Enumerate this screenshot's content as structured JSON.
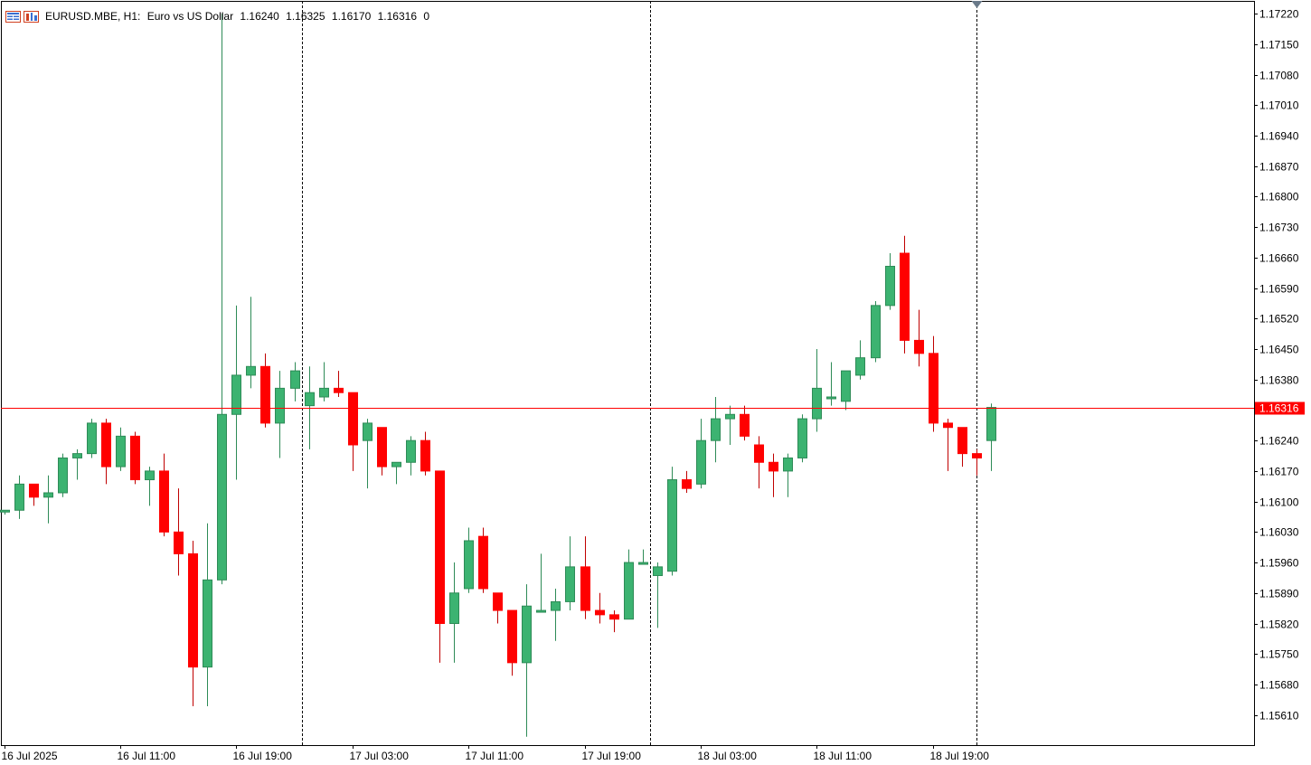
{
  "header": {
    "symbol": "EURUSD.MBE, H1:",
    "description": "Euro vs US Dollar",
    "open": "1.16240",
    "high": "1.16325",
    "low": "1.16170",
    "close": "1.16316",
    "volume": "0",
    "icons": [
      "chart-window-icon",
      "symbol-properties-icon"
    ]
  },
  "colors": {
    "bull": "#3CB371",
    "bear": "#FF0000",
    "bull_wick": "#2E8B57",
    "bear_wick": "#C00000",
    "price_line": "#FF0000",
    "price_label_bg": "#FF0000",
    "price_label_text": "#FFFFFF",
    "axis": "#000000",
    "separator": "#000000"
  },
  "chart_data": {
    "type": "candlestick",
    "symbol": "EURUSD.MBE",
    "timeframe": "H1",
    "current_price": 1.16316,
    "current_price_label": "1.16316",
    "ylim": [
      1.1553,
      1.1723
    ],
    "price_ticks": [
      "1.17220",
      "1.17150",
      "1.17080",
      "1.17010",
      "1.16940",
      "1.16870",
      "1.16800",
      "1.16730",
      "1.16660",
      "1.16590",
      "1.16520",
      "1.16450",
      "1.16380",
      "1.16240",
      "1.16170",
      "1.16100",
      "1.16030",
      "1.15960",
      "1.15890",
      "1.15820",
      "1.15750",
      "1.15680",
      "1.15610"
    ],
    "time_labels": [
      {
        "index": 0,
        "label": "16 Jul 2025"
      },
      {
        "index": 8,
        "label": "16 Jul 11:00"
      },
      {
        "index": 16,
        "label": "16 Jul 19:00"
      },
      {
        "index": 24,
        "label": "17 Jul 03:00"
      },
      {
        "index": 32,
        "label": "17 Jul 11:00"
      },
      {
        "index": 40,
        "label": "17 Jul 19:00"
      },
      {
        "index": 48,
        "label": "18 Jul 03:00"
      },
      {
        "index": 56,
        "label": "18 Jul 11:00"
      },
      {
        "index": 64,
        "label": "18 Jul 19:00"
      }
    ],
    "day_separators": [
      20.5,
      44.5
    ],
    "current_bar_marker_index": 67,
    "candles": [
      {
        "o": 1.1608,
        "h": 1.1608,
        "l": 1.1607,
        "c": 1.1608
      },
      {
        "o": 1.1608,
        "h": 1.1616,
        "l": 1.1606,
        "c": 1.1614
      },
      {
        "o": 1.1614,
        "h": 1.1614,
        "l": 1.1609,
        "c": 1.1611
      },
      {
        "o": 1.1611,
        "h": 1.1616,
        "l": 1.1605,
        "c": 1.1612
      },
      {
        "o": 1.1612,
        "h": 1.1621,
        "l": 1.1611,
        "c": 1.162
      },
      {
        "o": 1.162,
        "h": 1.1622,
        "l": 1.1615,
        "c": 1.1621
      },
      {
        "o": 1.1621,
        "h": 1.1629,
        "l": 1.162,
        "c": 1.1628
      },
      {
        "o": 1.1628,
        "h": 1.1629,
        "l": 1.1614,
        "c": 1.1618
      },
      {
        "o": 1.1618,
        "h": 1.1627,
        "l": 1.1617,
        "c": 1.1625
      },
      {
        "o": 1.1625,
        "h": 1.1626,
        "l": 1.1614,
        "c": 1.1615
      },
      {
        "o": 1.1615,
        "h": 1.1618,
        "l": 1.1609,
        "c": 1.1617
      },
      {
        "o": 1.1617,
        "h": 1.1621,
        "l": 1.1602,
        "c": 1.1603
      },
      {
        "o": 1.1603,
        "h": 1.1613,
        "l": 1.1593,
        "c": 1.1598
      },
      {
        "o": 1.1598,
        "h": 1.1601,
        "l": 1.1563,
        "c": 1.1572
      },
      {
        "o": 1.1572,
        "h": 1.1605,
        "l": 1.1563,
        "c": 1.1592
      },
      {
        "o": 1.1592,
        "h": 1.1722,
        "l": 1.1591,
        "c": 1.163
      },
      {
        "o": 1.163,
        "h": 1.1655,
        "l": 1.1615,
        "c": 1.1639
      },
      {
        "o": 1.1639,
        "h": 1.1657,
        "l": 1.1636,
        "c": 1.1641
      },
      {
        "o": 1.1641,
        "h": 1.1644,
        "l": 1.1627,
        "c": 1.1628
      },
      {
        "o": 1.1628,
        "h": 1.164,
        "l": 1.162,
        "c": 1.1636
      },
      {
        "o": 1.1636,
        "h": 1.1642,
        "l": 1.1633,
        "c": 1.164
      },
      {
        "o": 1.1632,
        "h": 1.1641,
        "l": 1.1622,
        "c": 1.1635
      },
      {
        "o": 1.1634,
        "h": 1.1642,
        "l": 1.1633,
        "c": 1.1636
      },
      {
        "o": 1.1636,
        "h": 1.164,
        "l": 1.1634,
        "c": 1.1635
      },
      {
        "o": 1.1635,
        "h": 1.1635,
        "l": 1.1617,
        "c": 1.1623
      },
      {
        "o": 1.1624,
        "h": 1.1629,
        "l": 1.1613,
        "c": 1.1628
      },
      {
        "o": 1.1627,
        "h": 1.1627,
        "l": 1.1616,
        "c": 1.1618
      },
      {
        "o": 1.1618,
        "h": 1.1619,
        "l": 1.1614,
        "c": 1.1619
      },
      {
        "o": 1.1619,
        "h": 1.1625,
        "l": 1.1616,
        "c": 1.1624
      },
      {
        "o": 1.1624,
        "h": 1.1626,
        "l": 1.1616,
        "c": 1.1617
      },
      {
        "o": 1.1617,
        "h": 1.1617,
        "l": 1.1573,
        "c": 1.1582
      },
      {
        "o": 1.1582,
        "h": 1.1596,
        "l": 1.1573,
        "c": 1.1589
      },
      {
        "o": 1.159,
        "h": 1.1604,
        "l": 1.1589,
        "c": 1.1601
      },
      {
        "o": 1.1602,
        "h": 1.1604,
        "l": 1.1589,
        "c": 1.159
      },
      {
        "o": 1.1589,
        "h": 1.1589,
        "l": 1.1582,
        "c": 1.1585
      },
      {
        "o": 1.1585,
        "h": 1.1585,
        "l": 1.157,
        "c": 1.1573
      },
      {
        "o": 1.1573,
        "h": 1.1591,
        "l": 1.1556,
        "c": 1.1586
      },
      {
        "o": 1.1585,
        "h": 1.1598,
        "l": 1.1585,
        "c": 1.1585
      },
      {
        "o": 1.1585,
        "h": 1.159,
        "l": 1.1578,
        "c": 1.1587
      },
      {
        "o": 1.1587,
        "h": 1.1602,
        "l": 1.1585,
        "c": 1.1595
      },
      {
        "o": 1.1595,
        "h": 1.1602,
        "l": 1.1583,
        "c": 1.1585
      },
      {
        "o": 1.1585,
        "h": 1.1589,
        "l": 1.1582,
        "c": 1.1584
      },
      {
        "o": 1.1584,
        "h": 1.1585,
        "l": 1.158,
        "c": 1.1583
      },
      {
        "o": 1.1583,
        "h": 1.1599,
        "l": 1.1583,
        "c": 1.1596
      },
      {
        "o": 1.1596,
        "h": 1.1599,
        "l": 1.1596,
        "c": 1.1596
      },
      {
        "o": 1.1593,
        "h": 1.1596,
        "l": 1.1581,
        "c": 1.1595
      },
      {
        "o": 1.1594,
        "h": 1.1618,
        "l": 1.1593,
        "c": 1.1615
      },
      {
        "o": 1.1615,
        "h": 1.1617,
        "l": 1.1612,
        "c": 1.1613
      },
      {
        "o": 1.1614,
        "h": 1.1629,
        "l": 1.1613,
        "c": 1.1624
      },
      {
        "o": 1.1624,
        "h": 1.1634,
        "l": 1.1619,
        "c": 1.1629
      },
      {
        "o": 1.1629,
        "h": 1.1632,
        "l": 1.1623,
        "c": 1.163
      },
      {
        "o": 1.163,
        "h": 1.1632,
        "l": 1.1624,
        "c": 1.1625
      },
      {
        "o": 1.1623,
        "h": 1.1625,
        "l": 1.1613,
        "c": 1.1619
      },
      {
        "o": 1.1619,
        "h": 1.1621,
        "l": 1.1611,
        "c": 1.1617
      },
      {
        "o": 1.1617,
        "h": 1.1621,
        "l": 1.1611,
        "c": 1.162
      },
      {
        "o": 1.162,
        "h": 1.163,
        "l": 1.1619,
        "c": 1.1629
      },
      {
        "o": 1.1629,
        "h": 1.1645,
        "l": 1.1626,
        "c": 1.1636
      },
      {
        "o": 1.1634,
        "h": 1.1642,
        "l": 1.1632,
        "c": 1.1634
      },
      {
        "o": 1.1633,
        "h": 1.164,
        "l": 1.1631,
        "c": 1.164
      },
      {
        "o": 1.1639,
        "h": 1.1647,
        "l": 1.1638,
        "c": 1.1643
      },
      {
        "o": 1.1643,
        "h": 1.1656,
        "l": 1.1642,
        "c": 1.1655
      },
      {
        "o": 1.1655,
        "h": 1.1667,
        "l": 1.1654,
        "c": 1.1664
      },
      {
        "o": 1.1667,
        "h": 1.1671,
        "l": 1.1644,
        "c": 1.1647
      },
      {
        "o": 1.1647,
        "h": 1.1654,
        "l": 1.1641,
        "c": 1.1644
      },
      {
        "o": 1.1644,
        "h": 1.1648,
        "l": 1.1626,
        "c": 1.1628
      },
      {
        "o": 1.1628,
        "h": 1.1629,
        "l": 1.1617,
        "c": 1.1627
      },
      {
        "o": 1.1627,
        "h": 1.1627,
        "l": 1.1618,
        "c": 1.1621
      },
      {
        "o": 1.1621,
        "h": 1.1622,
        "l": 1.1616,
        "c": 1.162
      },
      {
        "o": 1.1624,
        "h": 1.16325,
        "l": 1.1617,
        "c": 1.16316
      }
    ]
  }
}
